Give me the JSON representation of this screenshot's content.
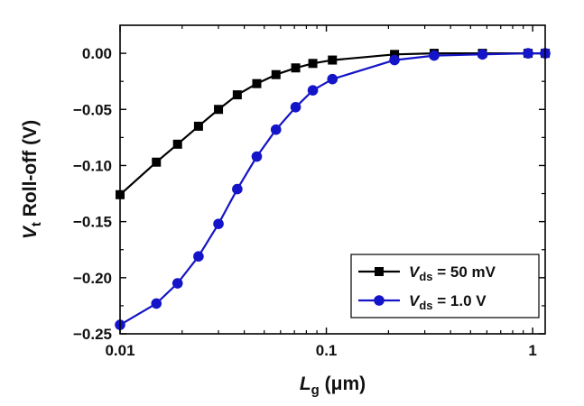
{
  "chart_data": {
    "type": "line",
    "xscale": "log",
    "xlim": [
      0.01,
      1.15
    ],
    "ylim": [
      -0.25,
      0.025
    ],
    "x_ticks": [
      {
        "value": 0.01,
        "label": "0.01"
      },
      {
        "value": 0.1,
        "label": "0.1"
      },
      {
        "value": 1,
        "label": "1"
      }
    ],
    "y_ticks": [
      {
        "value": 0.0,
        "label": "0.00"
      },
      {
        "value": -0.05,
        "label": "−0.05"
      },
      {
        "value": -0.1,
        "label": "−0.10"
      },
      {
        "value": -0.15,
        "label": "−0.15"
      },
      {
        "value": -0.2,
        "label": "−0.20"
      },
      {
        "value": -0.25,
        "label": "−0.25"
      }
    ],
    "xlabel": {
      "main": "L",
      "sub": "g",
      "rest": " (μm)"
    },
    "ylabel": {
      "main": "V",
      "sub": "t",
      "rest": " Roll-off (V)"
    },
    "legend_position": "bottom-right",
    "series": [
      {
        "name": "V_ds = 50 mV",
        "legend": {
          "main": "V",
          "sub": "ds",
          "rest": " = 50 mV"
        },
        "color": "#000000",
        "marker": "square",
        "x": [
          0.01,
          0.015,
          0.019,
          0.024,
          0.03,
          0.037,
          0.046,
          0.057,
          0.071,
          0.086,
          0.107,
          0.214,
          0.333,
          0.571,
          0.95,
          1.15
        ],
        "y": [
          -0.126,
          -0.097,
          -0.081,
          -0.065,
          -0.05,
          -0.037,
          -0.027,
          -0.019,
          -0.013,
          -0.009,
          -0.006,
          -0.001,
          0.0,
          0.0,
          0.0,
          0.0
        ]
      },
      {
        "name": "V_ds = 1.0 V",
        "legend": {
          "main": "V",
          "sub": "ds",
          "rest": " = 1.0 V"
        },
        "color": "#1414c8",
        "marker": "circle",
        "x": [
          0.01,
          0.015,
          0.019,
          0.024,
          0.03,
          0.037,
          0.046,
          0.057,
          0.071,
          0.086,
          0.107,
          0.214,
          0.333,
          0.571,
          0.95,
          1.15
        ],
        "y": [
          -0.242,
          -0.223,
          -0.205,
          -0.181,
          -0.152,
          -0.121,
          -0.092,
          -0.068,
          -0.048,
          -0.033,
          -0.023,
          -0.006,
          -0.002,
          -0.001,
          0.0,
          0.0
        ]
      }
    ]
  }
}
